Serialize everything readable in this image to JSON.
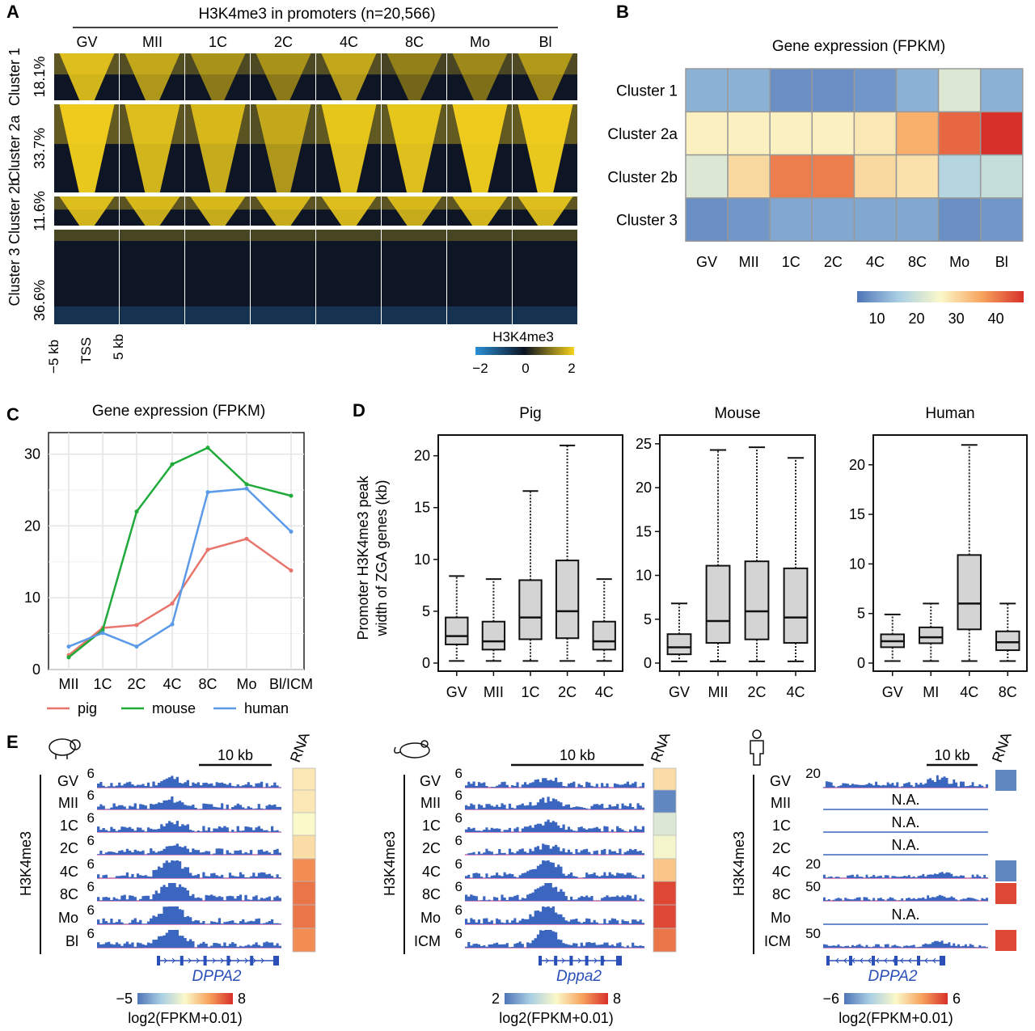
{
  "panel_labels": [
    "A",
    "B",
    "C",
    "D",
    "E"
  ],
  "chart_data": [
    {
      "type": "heatmap",
      "panel": "A",
      "title": "H3K4me3 in promoters (n=20,566)",
      "columns": [
        "GV",
        "MII",
        "1C",
        "2C",
        "4C",
        "8C",
        "Mo",
        "Bl"
      ],
      "clusters": [
        {
          "name": "Cluster 1",
          "percent": "18.1%",
          "intensity": [
            0.9,
            0.75,
            0.6,
            0.6,
            0.75,
            0.5,
            0.55,
            0.65
          ]
        },
        {
          "name": "Cluster 2a",
          "percent": "33.7%",
          "intensity": [
            1.0,
            0.9,
            0.85,
            0.75,
            0.95,
            0.95,
            1.0,
            1.0
          ]
        },
        {
          "name": "Cluster 2b",
          "percent": "11.6%",
          "intensity": [
            0.9,
            0.85,
            0.85,
            0.85,
            0.9,
            0.85,
            0.9,
            0.9
          ]
        },
        {
          "name": "Cluster 3",
          "percent": "36.6%",
          "intensity": [
            0.15,
            0.12,
            0.15,
            0.15,
            0.12,
            0.1,
            0.12,
            0.12
          ]
        }
      ],
      "xticks": [
        "−5 kb",
        "TSS",
        "5 kb"
      ],
      "colorbar": {
        "label": "H3K4me3",
        "ticks": [
          "−2",
          "0",
          "2"
        ],
        "colors": [
          "#2a8fd6",
          "#0b1220",
          "#f6d21c"
        ]
      }
    },
    {
      "type": "heatmap",
      "panel": "B",
      "title": "Gene expression (FPKM)",
      "rows": [
        "Cluster 1",
        "Cluster 2a",
        "Cluster 2b",
        "Cluster 3"
      ],
      "columns": [
        "GV",
        "MII",
        "1C",
        "2C",
        "4C",
        "8C",
        "Mo",
        "Bl"
      ],
      "values": [
        [
          12,
          12,
          8,
          8,
          9,
          12,
          22,
          12
        ],
        [
          27,
          27,
          27,
          27,
          28,
          35,
          42,
          47
        ],
        [
          22,
          30,
          40,
          40,
          30,
          29,
          17,
          19
        ],
        [
          8,
          9,
          11,
          11,
          11,
          11,
          8,
          9
        ]
      ],
      "colorbar": {
        "ticks": [
          "10",
          "20",
          "30",
          "40"
        ],
        "range": [
          5,
          47
        ]
      }
    },
    {
      "type": "line",
      "panel": "C",
      "title": "Gene expression (FPKM)",
      "categories": [
        "MII",
        "1C",
        "2C",
        "4C",
        "8C",
        "Mo",
        "Bl/ICM"
      ],
      "yticks": [
        "0",
        "10",
        "20",
        "30"
      ],
      "ylim": [
        0,
        33
      ],
      "series": [
        {
          "name": "pig",
          "color": "#e8756b",
          "values": [
            2.0,
            5.8,
            6.2,
            9.2,
            16.7,
            18.2,
            13.8
          ]
        },
        {
          "name": "mouse",
          "color": "#1faa3a",
          "values": [
            1.7,
            5.5,
            22.0,
            28.6,
            30.9,
            25.8,
            24.2
          ]
        },
        {
          "name": "human",
          "color": "#5b9ae8",
          "values": [
            3.2,
            5.1,
            3.2,
            6.3,
            24.7,
            25.2,
            19.2
          ]
        }
      ]
    },
    {
      "type": "box",
      "panel": "D",
      "ylabel": [
        "Promoter H3K4me3 peak",
        "width of ZGA genes (kb)"
      ],
      "panels": [
        {
          "title": "Pig",
          "ylim": [
            0,
            22
          ],
          "yticks": [
            "0",
            "5",
            "10",
            "15",
            "20"
          ],
          "ytick_values": [
            0,
            5,
            10,
            15,
            20
          ],
          "boxes": [
            {
              "label": "GV",
              "min": 0.2,
              "q1": 1.8,
              "median": 2.6,
              "q3": 4.4,
              "max": 8.4
            },
            {
              "label": "MII",
              "min": 0.2,
              "q1": 1.3,
              "median": 2.1,
              "q3": 4.0,
              "max": 8.1
            },
            {
              "label": "1C",
              "min": 0.2,
              "q1": 2.3,
              "median": 4.4,
              "q3": 8.0,
              "max": 16.6
            },
            {
              "label": "2C",
              "min": 0.2,
              "q1": 2.4,
              "median": 5.0,
              "q3": 9.9,
              "max": 21.0
            },
            {
              "label": "4C",
              "min": 0.2,
              "q1": 1.3,
              "median": 2.1,
              "q3": 4.0,
              "max": 8.1
            }
          ]
        },
        {
          "title": "Mouse",
          "ylim": [
            0,
            26
          ],
          "yticks": [
            "0",
            "5",
            "10",
            "15",
            "20",
            "25"
          ],
          "ytick_values": [
            0,
            5,
            10,
            15,
            20,
            25
          ],
          "boxes": [
            {
              "label": "GV",
              "min": 0.2,
              "q1": 1.0,
              "median": 1.8,
              "q3": 3.3,
              "max": 6.8
            },
            {
              "label": "MII",
              "min": 0.2,
              "q1": 2.3,
              "median": 4.8,
              "q3": 11.1,
              "max": 24.3
            },
            {
              "label": "2C",
              "min": 0.2,
              "q1": 2.7,
              "median": 5.9,
              "q3": 11.6,
              "max": 24.6
            },
            {
              "label": "4C",
              "min": 0.2,
              "q1": 2.3,
              "median": 5.2,
              "q3": 10.8,
              "max": 23.4
            }
          ]
        },
        {
          "title": "Human",
          "ylim": [
            0,
            23
          ],
          "yticks": [
            "0",
            "5",
            "10",
            "15",
            "20"
          ],
          "ytick_values": [
            0,
            5,
            10,
            15,
            20
          ],
          "boxes": [
            {
              "label": "GV",
              "min": 0.2,
              "q1": 1.6,
              "median": 2.2,
              "q3": 2.9,
              "max": 4.9
            },
            {
              "label": "MI",
              "min": 0.2,
              "q1": 2.0,
              "median": 2.6,
              "q3": 3.6,
              "max": 6.0
            },
            {
              "label": "4C",
              "min": 0.2,
              "q1": 3.4,
              "median": 6.0,
              "q3": 10.9,
              "max": 22.0
            },
            {
              "label": "8C",
              "min": 0.2,
              "q1": 1.3,
              "median": 2.1,
              "q3": 3.2,
              "max": 6.0
            }
          ]
        }
      ]
    },
    {
      "type": "browser-tracks",
      "panel": "E",
      "track_label": "H3K4me3",
      "rna_label": "RNA",
      "scale_label": "10 kb",
      "colorbar_label": "log2(FPKM+0.01)",
      "groups": [
        {
          "species_icon": "pig-icon",
          "gene": "DPPA2",
          "scale_max": [
            "6",
            "6",
            "6",
            "6",
            "6",
            "6",
            "6",
            "6"
          ],
          "stages": [
            "GV",
            "MII",
            "1C",
            "2C",
            "4C",
            "8C",
            "Mo",
            "Bl"
          ],
          "available": [
            true,
            true,
            true,
            true,
            true,
            true,
            true,
            true
          ],
          "rna": [
            0.55,
            0.55,
            0.5,
            0.58,
            0.8,
            0.85,
            0.85,
            0.8
          ],
          "colorbar": {
            "min": "−5",
            "max": "8"
          }
        },
        {
          "species_icon": "mouse-icon",
          "gene": "Dppa2",
          "scale_max": [
            "6",
            "6",
            "6",
            "6",
            "6",
            "6",
            "6",
            "6"
          ],
          "stages": [
            "GV",
            "MII",
            "1C",
            "2C",
            "4C",
            "8C",
            "Mo",
            "ICM"
          ],
          "available": [
            true,
            true,
            true,
            true,
            true,
            true,
            true,
            true
          ],
          "rna": [
            0.58,
            0.05,
            0.4,
            0.48,
            0.65,
            0.95,
            0.95,
            0.85
          ],
          "colorbar": {
            "min": "2",
            "max": "8"
          }
        },
        {
          "species_icon": "human-icon",
          "gene": "DPPA2",
          "scale_max": [
            "20",
            "",
            "",
            "",
            "20",
            "50",
            "",
            "50"
          ],
          "stages": [
            "GV",
            "MII",
            "1C",
            "2C",
            "4C",
            "8C",
            "Mo",
            "ICM"
          ],
          "available": [
            true,
            false,
            false,
            false,
            true,
            true,
            false,
            true
          ],
          "na_label": "N.A.",
          "rna": [
            0.05,
            null,
            null,
            null,
            0.05,
            0.95,
            null,
            0.95
          ],
          "colorbar": {
            "min": "−6",
            "max": "6"
          }
        }
      ]
    }
  ]
}
